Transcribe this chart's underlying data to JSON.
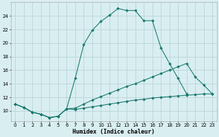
{
  "xlabel": "Humidex (Indice chaleur)",
  "bg_color": "#d9eef1",
  "grid_color": "#b8d4d8",
  "line_color": "#1a7a6e",
  "xlim": [
    -0.5,
    23.5
  ],
  "ylim": [
    8.5,
    26
  ],
  "xticks": [
    0,
    1,
    2,
    3,
    4,
    5,
    6,
    7,
    8,
    9,
    10,
    11,
    12,
    13,
    14,
    15,
    16,
    17,
    18,
    19,
    20,
    21,
    22,
    23
  ],
  "yticks": [
    10,
    12,
    14,
    16,
    18,
    20,
    22,
    24
  ],
  "line1_x": [
    0,
    1,
    2,
    3,
    4,
    5,
    6,
    7,
    8,
    9,
    10,
    11,
    12,
    13,
    14,
    15,
    16,
    17,
    18,
    19,
    20
  ],
  "line1_y": [
    11,
    10.5,
    9.8,
    9.5,
    9.0,
    9.2,
    10.3,
    14.8,
    19.8,
    21.9,
    23.2,
    24.1,
    25.1,
    24.8,
    24.8,
    23.3,
    23.3,
    19.3,
    17.0,
    14.8,
    12.5
  ],
  "line2_x": [
    0,
    1,
    2,
    3,
    4,
    5,
    6,
    7,
    8,
    9,
    10,
    11,
    12,
    13,
    14,
    15,
    16,
    17,
    18,
    19,
    20,
    21,
    22,
    23
  ],
  "line2_y": [
    11,
    10.5,
    9.8,
    9.5,
    9.0,
    9.2,
    10.3,
    10.2,
    10.4,
    10.6,
    10.8,
    11.0,
    11.2,
    11.4,
    11.6,
    11.7,
    11.9,
    12.0,
    12.1,
    12.2,
    12.3,
    12.4,
    12.5,
    12.5
  ],
  "line3_x": [
    0,
    1,
    2,
    3,
    4,
    5,
    6,
    7,
    8,
    9,
    10,
    11,
    12,
    13,
    14,
    15,
    16,
    17,
    18,
    19,
    20,
    21,
    22,
    23
  ],
  "line3_y": [
    11,
    10.5,
    9.8,
    9.5,
    9.0,
    9.2,
    10.3,
    10.4,
    11.0,
    11.6,
    12.1,
    12.6,
    13.1,
    13.6,
    14.0,
    14.5,
    15.0,
    15.5,
    16.0,
    16.5,
    17.0,
    15.0,
    13.8,
    12.5
  ]
}
